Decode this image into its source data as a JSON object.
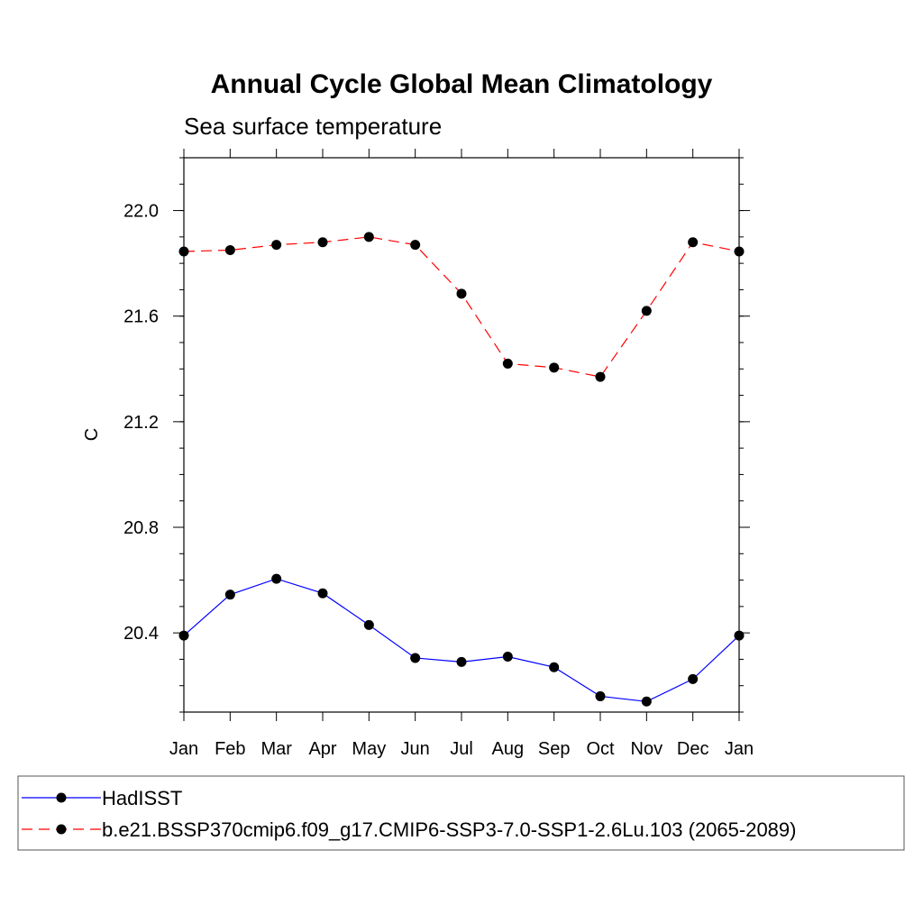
{
  "chart_data": {
    "type": "line",
    "title": "Annual Cycle Global Mean Climatology",
    "subtitle": "Sea surface temperature",
    "xlabel": "",
    "ylabel": "C",
    "categories": [
      "Jan",
      "Feb",
      "Mar",
      "Apr",
      "May",
      "Jun",
      "Jul",
      "Aug",
      "Sep",
      "Oct",
      "Nov",
      "Dec",
      "Jan"
    ],
    "ylim": [
      20.1,
      22.2
    ],
    "yticks": [
      20.4,
      20.8,
      21.2,
      21.6,
      22.0
    ],
    "ytick_labels": [
      "20.4",
      "20.8",
      "21.2",
      "21.6",
      "22.0"
    ],
    "grid": false,
    "legend_position": "bottom",
    "series": [
      {
        "name": "HadISST",
        "color": "#0000ff",
        "dash": "solid",
        "values": [
          20.39,
          20.545,
          20.605,
          20.55,
          20.43,
          20.305,
          20.29,
          20.31,
          20.27,
          20.16,
          20.14,
          20.225,
          20.39
        ]
      },
      {
        "name": "b.e21.BSSP370cmip6.f09_g17.CMIP6-SSP3-7.0-SSP1-2.6Lu.103 (2065-2089)",
        "color": "#ff0000",
        "dash": "dashed",
        "values": [
          21.845,
          21.85,
          21.87,
          21.88,
          21.9,
          21.87,
          21.685,
          21.42,
          21.405,
          21.37,
          21.62,
          21.88,
          21.845
        ]
      }
    ]
  }
}
